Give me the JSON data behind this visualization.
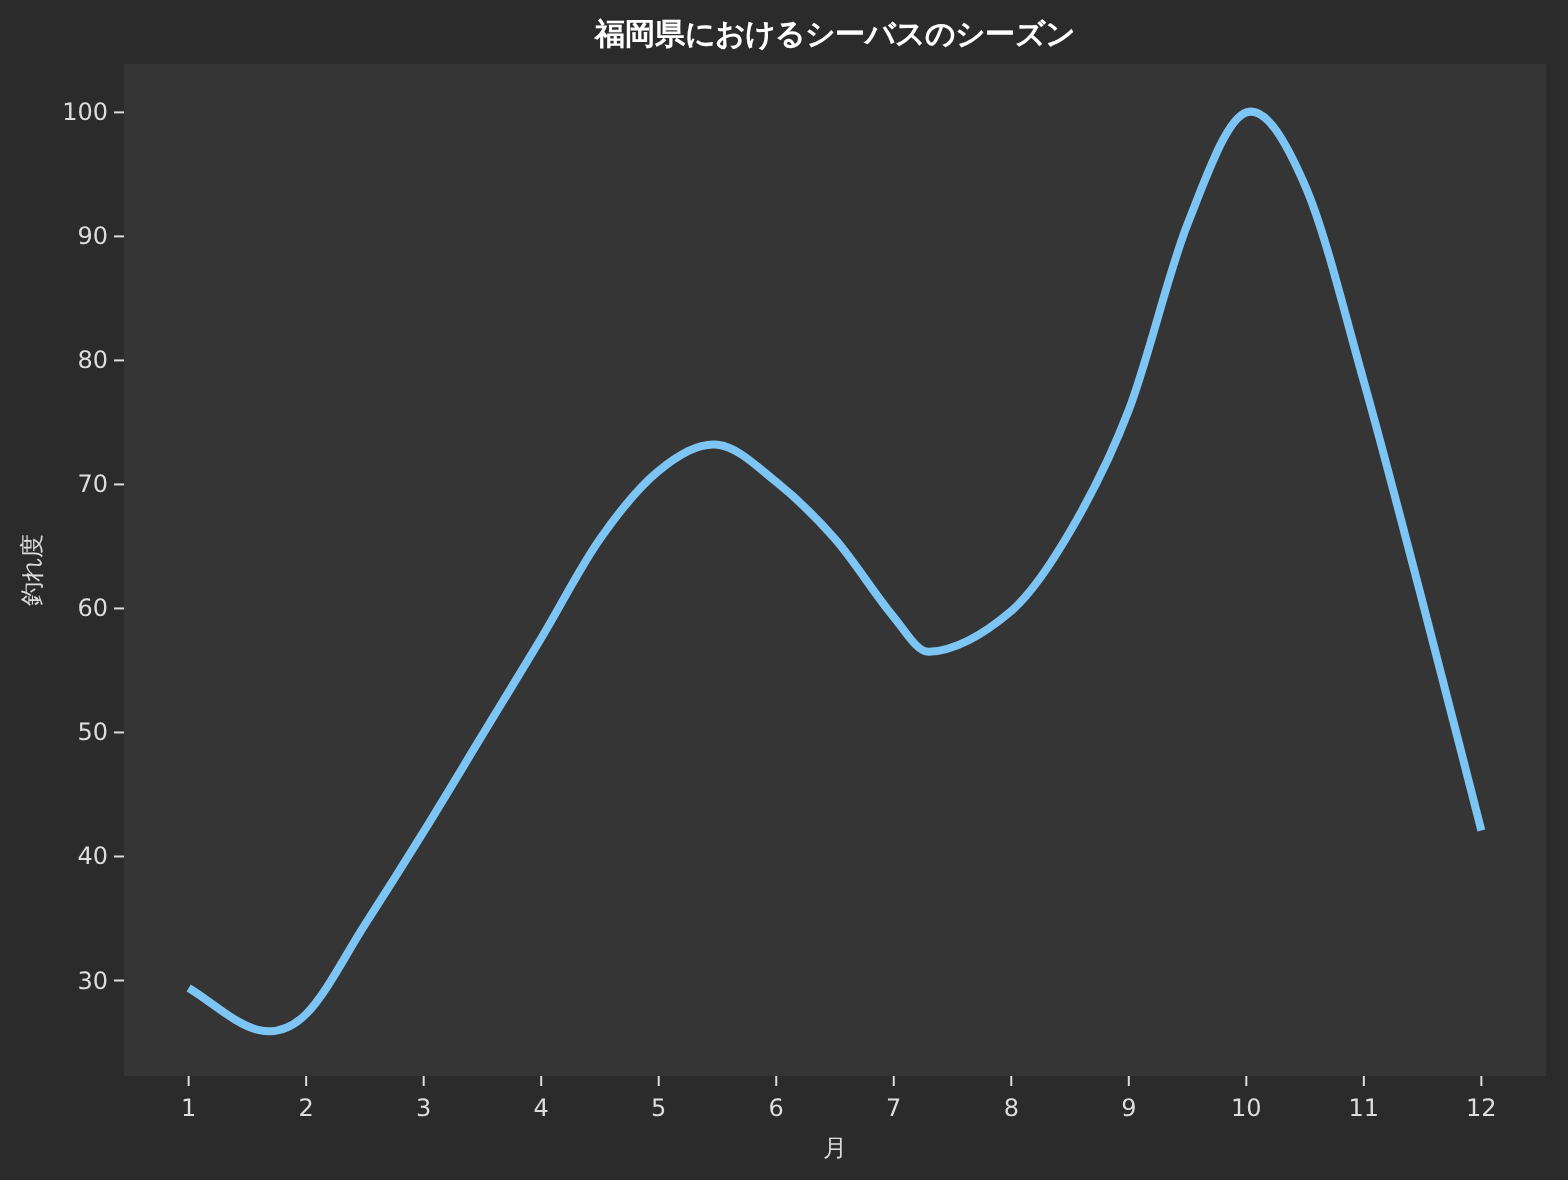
{
  "chart_data": {
    "type": "line",
    "title": "福岡県におけるシーバスのシーズン",
    "xlabel": "月",
    "ylabel": "釣れ度",
    "x": [
      1,
      1.6,
      2,
      2.5,
      3,
      3.5,
      4,
      4.5,
      5,
      5.5,
      6,
      6.5,
      7,
      7.3,
      8,
      8.5,
      9,
      9.5,
      10,
      10.5,
      11,
      11.5,
      12
    ],
    "series": [
      {
        "color": "#7cc5f5",
        "values": [
          29.4,
          26,
          27.3,
          34.5,
          42,
          49.8,
          57.6,
          65.6,
          71.1,
          73.2,
          70.2,
          65.6,
          59.3,
          56.5,
          59.8,
          66.2,
          76,
          91,
          100,
          94.1,
          78.3,
          60.5,
          42.1
        ]
      }
    ],
    "xlim": [
      0.45,
      12.55
    ],
    "xticks": [
      1,
      2,
      3,
      4,
      5,
      6,
      7,
      8,
      9,
      10,
      11,
      12
    ],
    "ylim": [
      22.3,
      103.9
    ],
    "yticks": [
      30,
      40,
      50,
      60,
      70,
      80,
      90,
      100
    ],
    "grid": false,
    "marker": "none",
    "line_style": "solid"
  }
}
